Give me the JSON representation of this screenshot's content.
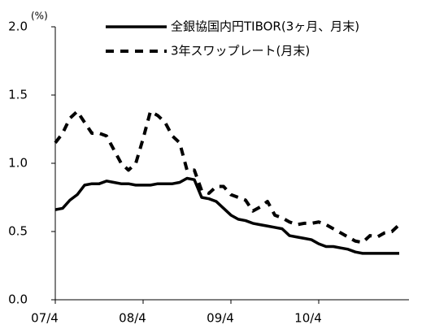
{
  "chart_data": {
    "type": "line",
    "y_unit": "(%)",
    "categories": [
      "07/4",
      null,
      null,
      null,
      null,
      null,
      null,
      null,
      null,
      null,
      null,
      null,
      "08/4",
      null,
      null,
      null,
      null,
      null,
      null,
      null,
      null,
      null,
      null,
      null,
      "09/4",
      null,
      null,
      null,
      null,
      null,
      null,
      null,
      null,
      null,
      null,
      null,
      "10/4",
      null,
      null,
      null,
      null,
      null,
      null,
      null,
      null,
      null,
      null,
      null
    ],
    "series": [
      {
        "name": "全銀協国内円TIBOR(3ヶ月、月末)",
        "color": "#000000",
        "dash": false,
        "values": [
          0.66,
          0.67,
          0.73,
          0.77,
          0.84,
          0.85,
          0.85,
          0.87,
          0.86,
          0.85,
          0.85,
          0.84,
          0.84,
          0.84,
          0.85,
          0.85,
          0.85,
          0.86,
          0.89,
          0.88,
          0.75,
          0.74,
          0.72,
          0.67,
          0.62,
          0.59,
          0.58,
          0.56,
          0.55,
          0.54,
          0.53,
          0.52,
          0.47,
          0.46,
          0.45,
          0.44,
          0.41,
          0.39,
          0.39,
          0.38,
          0.37,
          0.35,
          0.34,
          0.34,
          0.34,
          0.34,
          0.34,
          0.34
        ]
      },
      {
        "name": "3年スワップレート(月末)",
        "color": "#000000",
        "dash": true,
        "values": [
          1.15,
          1.22,
          1.33,
          1.38,
          1.3,
          1.22,
          1.22,
          1.2,
          1.1,
          1.0,
          0.95,
          1.0,
          1.18,
          1.38,
          1.35,
          1.3,
          1.2,
          1.15,
          0.95,
          0.95,
          0.8,
          0.78,
          0.83,
          0.83,
          0.77,
          0.75,
          0.73,
          0.65,
          0.68,
          0.72,
          0.62,
          0.6,
          0.57,
          0.55,
          0.56,
          0.56,
          0.57,
          0.55,
          0.52,
          0.49,
          0.46,
          0.43,
          0.42,
          0.47,
          0.46,
          0.49,
          0.5,
          0.55
        ]
      }
    ],
    "ylim": [
      0,
      2
    ],
    "yticks": [
      {
        "value": 0,
        "label": "0.0"
      },
      0.5,
      {
        "value": 1,
        "label": "1.0"
      },
      1.5,
      {
        "value": 2,
        "label": "2.0"
      }
    ],
    "grid": false,
    "legend": "top-right"
  }
}
